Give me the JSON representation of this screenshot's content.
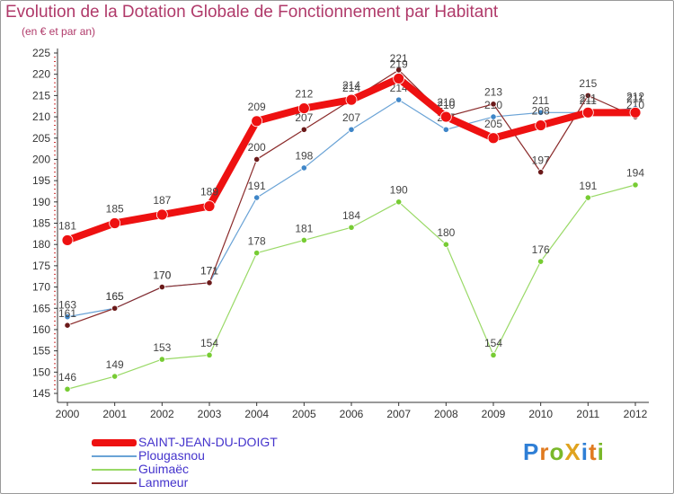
{
  "title": "Evolution de la Dotation Globale de Fonctionnement par Habitant",
  "subtitle": "(en € et par an)",
  "logo": {
    "text": "ProXiti",
    "letters": [
      {
        "ch": "P",
        "color": "#2f7fd6"
      },
      {
        "ch": "r",
        "color": "#e07a1f"
      },
      {
        "ch": "o",
        "color": "#7ab82a"
      },
      {
        "ch": "X",
        "color": "#e0a31f"
      },
      {
        "ch": "i",
        "color": "#2f7fd6"
      },
      {
        "ch": "t",
        "color": "#e07a1f"
      },
      {
        "ch": "i",
        "color": "#7ab82a"
      }
    ]
  },
  "chart_data": {
    "type": "line",
    "title": "Evolution de la Dotation Globale de Fonctionnement par Habitant",
    "ylabel": "(en € et par an)",
    "xlabel": "",
    "x": [
      "2000",
      "2001",
      "2002",
      "2003",
      "2004",
      "2005",
      "2006",
      "2007",
      "2008",
      "2009",
      "2010",
      "2011",
      "2012"
    ],
    "ylim": [
      145,
      225
    ],
    "yticks": [
      "145",
      "150",
      "155",
      "160",
      "165",
      "170",
      "175",
      "180",
      "185",
      "190",
      "195",
      "200",
      "205",
      "210",
      "215",
      "220",
      "225"
    ],
    "grid": false,
    "legend_position": "bottom-left",
    "series": [
      {
        "name": "Guimaëc",
        "color": "#99d966",
        "marker_color": "#77cc33",
        "width": 1.2,
        "marker_radius": 3.2,
        "values": [
          146,
          149,
          153,
          154,
          178,
          181,
          184,
          190,
          180,
          154,
          176,
          191,
          194
        ],
        "labels": [
          "146",
          "149",
          "153",
          "154",
          "178",
          "181",
          "184",
          "190",
          "180",
          "154",
          "176",
          "191",
          "194"
        ]
      },
      {
        "name": "Plougasnou",
        "color": "#6aa3d6",
        "marker_color": "#3f86c8",
        "width": 1.2,
        "marker_radius": 3.2,
        "values": [
          163,
          165,
          170,
          171,
          191,
          198,
          207,
          214,
          207,
          210,
          211,
          211,
          212
        ],
        "labels": [
          "163",
          "165",
          "170",
          "171",
          "191",
          "198",
          "207",
          "214",
          "207",
          "210",
          "211",
          "211",
          "212"
        ]
      },
      {
        "name": "Lanmeur",
        "color": "#8a2a2a",
        "marker_color": "#6b1a1a",
        "width": 1.2,
        "marker_radius": 3.2,
        "values": [
          161,
          165,
          170,
          171,
          200,
          207,
          214,
          221,
          210,
          213,
          197,
          215,
          210
        ],
        "labels": [
          "161",
          "165",
          "170",
          "171",
          "200",
          "207",
          "214",
          "221",
          "210",
          "213",
          "197",
          "215",
          "210"
        ]
      },
      {
        "name": "SAINT-JEAN-DU-DOIGT",
        "color": "#ee1111",
        "marker_color": "#ee1111",
        "width": 8,
        "marker_radius": 6,
        "values": [
          181,
          185,
          187,
          189,
          209,
          212,
          214,
          219,
          210,
          205,
          208,
          211,
          211
        ],
        "labels": [
          "181",
          "185",
          "187",
          "189",
          "209",
          "212",
          "214",
          "219",
          "210",
          "205",
          "208",
          "211",
          "211"
        ]
      }
    ]
  },
  "legend": [
    {
      "label": "SAINT-JEAN-DU-DOIGT",
      "color": "#ee1111",
      "thickness": 8
    },
    {
      "label": "Plougasnou",
      "color": "#6aa3d6",
      "thickness": 2
    },
    {
      "label": "Guimaëc",
      "color": "#99d966",
      "thickness": 2
    },
    {
      "label": "Lanmeur",
      "color": "#8a2a2a",
      "thickness": 2
    }
  ]
}
